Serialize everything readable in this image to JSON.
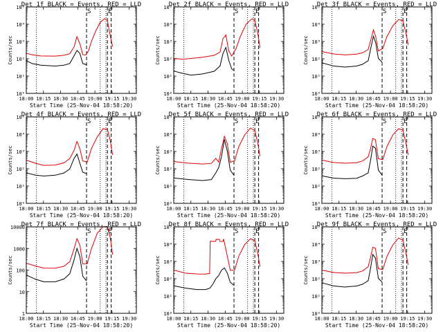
{
  "colors": {
    "background": "#ffffff",
    "events": "#000000",
    "lld": "#e00000"
  },
  "shared": {
    "xticks": [
      "18:00",
      "18:15",
      "18:30",
      "18:45",
      "19:00",
      "19:15",
      "19:30"
    ],
    "xlabel": "Start Time (25-Nov-04 18:58:20)",
    "ylabel": "Counts/sec",
    "marker_S": "S",
    "marker_E": "E"
  },
  "chart_data": [
    {
      "type": "line",
      "title": "Det 1f BLACK = Events, RED = LLD",
      "xlim_min": [
        0,
        38
      ],
      "log_y": true,
      "ylim": [
        1,
        100000
      ],
      "ytick_labels": [
        "10⁰",
        "10¹",
        "10²",
        "10³",
        "10⁴",
        "10⁵"
      ],
      "vlines_dotted_min": [
        3.5,
        25.5,
        27.5
      ],
      "vlines_dashed_min": [
        20.8,
        28.0,
        29.3
      ],
      "series": [
        {
          "color": "black",
          "x": [
            0,
            2,
            5,
            10,
            13,
            15,
            16.5,
            17.5,
            18.5,
            19.5,
            20.5,
            20.8
          ],
          "y": [
            80,
            55,
            45,
            40,
            45,
            55,
            150,
            300,
            200,
            50,
            45,
            40
          ]
        },
        {
          "color": "red",
          "x": [
            0,
            2,
            5,
            10,
            13,
            15,
            16.5,
            17.5,
            18.5,
            19.5,
            20.5,
            21.5,
            22.5,
            24,
            25.5,
            27,
            28,
            29,
            29.8
          ],
          "y": [
            200,
            160,
            140,
            140,
            160,
            200,
            500,
            2000,
            800,
            180,
            170,
            300,
            1000,
            4000,
            12000,
            20000,
            15000,
            2000,
            500
          ]
        }
      ]
    },
    {
      "type": "line",
      "title": "Det 2f BLACK = Events, RED = LLD",
      "xlim_min": [
        0,
        38
      ],
      "log_y": true,
      "ylim": [
        1,
        100000
      ],
      "ytick_labels": [
        "10⁰",
        "10¹",
        "10²",
        "10³",
        "10⁴",
        "10⁵"
      ],
      "vlines_dotted_min": [
        3.5,
        25.5,
        27.5
      ],
      "vlines_dashed_min": [
        20.8,
        28.0,
        29.3
      ],
      "series": [
        {
          "color": "black",
          "x": [
            0,
            3,
            6,
            10,
            14,
            16,
            17,
            18,
            19,
            20,
            20.8
          ],
          "y": [
            20,
            15,
            12,
            14,
            20,
            40,
            200,
            450,
            80,
            25,
            20
          ]
        },
        {
          "color": "red",
          "x": [
            0,
            3,
            6,
            10,
            14,
            16,
            17,
            18,
            19,
            20,
            21.5,
            23,
            25,
            27,
            28,
            29,
            29.8
          ],
          "y": [
            100,
            90,
            100,
            120,
            160,
            250,
            1500,
            2500,
            300,
            150,
            400,
            2000,
            10000,
            20000,
            15000,
            3000,
            400
          ]
        }
      ]
    },
    {
      "type": "line",
      "title": "Det 3f BLACK = Events, RED = LLD",
      "xlim_min": [
        0,
        38
      ],
      "log_y": true,
      "ylim": [
        1,
        100000
      ],
      "ytick_labels": [
        "10⁰",
        "10¹",
        "10²",
        "10³",
        "10⁴",
        "10⁵"
      ],
      "vlines_dotted_min": [
        3.5,
        25.5,
        27.5
      ],
      "vlines_dashed_min": [
        20.8,
        28.0,
        29.3
      ],
      "series": [
        {
          "color": "black",
          "x": [
            0,
            4,
            8,
            12,
            14,
            16,
            17,
            17.8,
            18.6,
            19.5,
            20.8
          ],
          "y": [
            60,
            40,
            35,
            40,
            50,
            80,
            500,
            2000,
            800,
            100,
            60
          ]
        },
        {
          "color": "red",
          "x": [
            0,
            4,
            8,
            12,
            14,
            16,
            17,
            17.8,
            18.6,
            19.5,
            21,
            22.5,
            24.5,
            26.5,
            28,
            29,
            29.8
          ],
          "y": [
            250,
            180,
            160,
            180,
            220,
            350,
            1500,
            5000,
            2000,
            300,
            400,
            2000,
            8000,
            18000,
            15000,
            3000,
            600
          ]
        }
      ]
    },
    {
      "type": "line",
      "title": "Det 4f BLACK = Events, RED = LLD",
      "xlim_min": [
        0,
        38
      ],
      "log_y": true,
      "ylim": [
        1,
        100000
      ],
      "ytick_labels": [
        "10⁰",
        "10¹",
        "10²",
        "10³",
        "10⁴",
        "10⁵"
      ],
      "vlines_dotted_min": [
        3.5,
        25.5,
        27.5
      ],
      "vlines_dashed_min": [
        20.8,
        28.0,
        29.3
      ],
      "series": [
        {
          "color": "black",
          "x": [
            0,
            3,
            6,
            10,
            13,
            15,
            16.5,
            17.5,
            18.5,
            19.5,
            20.8
          ],
          "y": [
            60,
            45,
            40,
            45,
            60,
            100,
            400,
            700,
            200,
            60,
            50
          ]
        },
        {
          "color": "red",
          "x": [
            0,
            3,
            6,
            10,
            13,
            15,
            16.5,
            17.5,
            18.5,
            19.5,
            21,
            22.5,
            24.5,
            26.5,
            28,
            29,
            29.8
          ],
          "y": [
            300,
            200,
            150,
            160,
            220,
            400,
            1200,
            4000,
            1500,
            300,
            250,
            1500,
            7000,
            20000,
            18000,
            4000,
            600
          ]
        }
      ]
    },
    {
      "type": "line",
      "title": "Det 5f BLACK = Events, RED = LLD",
      "xlim_min": [
        0,
        38
      ],
      "log_y": true,
      "ylim": [
        1,
        100000
      ],
      "ytick_labels": [
        "10⁰",
        "10¹",
        "10²",
        "10³",
        "10⁴",
        "10⁵"
      ],
      "vlines_dotted_min": [
        3.5,
        25.5,
        27.5
      ],
      "vlines_dashed_min": [
        20.8,
        28.0,
        29.3
      ],
      "series": [
        {
          "color": "black",
          "x": [
            0,
            5,
            10,
            13,
            14.5,
            15.5,
            16.5,
            17.5,
            18.5,
            19.5,
            20.8
          ],
          "y": [
            30,
            25,
            22,
            25,
            60,
            120,
            500,
            5000,
            1000,
            80,
            40
          ]
        },
        {
          "color": "red",
          "x": [
            0,
            5,
            10,
            13,
            14.5,
            15.5,
            16.5,
            17.5,
            18.5,
            19.5,
            21,
            22.5,
            24.5,
            26.5,
            28,
            29,
            29.8
          ],
          "y": [
            250,
            200,
            180,
            200,
            400,
            250,
            1500,
            8000,
            3000,
            250,
            300,
            2000,
            9000,
            22000,
            15000,
            3000,
            500
          ]
        }
      ]
    },
    {
      "type": "line",
      "title": "Det 6f BLACK = Events, RED = LLD",
      "xlim_min": [
        0,
        38
      ],
      "log_y": true,
      "ylim": [
        1,
        100000
      ],
      "ytick_labels": [
        "10⁰",
        "10¹",
        "10²",
        "10³",
        "10⁴",
        "10⁵"
      ],
      "vlines_dotted_min": [
        3.5,
        25.5,
        27.5
      ],
      "vlines_dashed_min": [
        20.8,
        28.0,
        29.3
      ],
      "series": [
        {
          "color": "black",
          "x": [
            0,
            4,
            8,
            12,
            14,
            16,
            16.8,
            17.6,
            18.5,
            19.5,
            20.8
          ],
          "y": [
            40,
            30,
            28,
            30,
            40,
            60,
            300,
            2000,
            1500,
            80,
            40
          ]
        },
        {
          "color": "red",
          "x": [
            0,
            4,
            8,
            12,
            14,
            16,
            16.8,
            17.6,
            18.5,
            19.5,
            21,
            22.5,
            24.5,
            26.5,
            28,
            29,
            29.8
          ],
          "y": [
            300,
            220,
            200,
            220,
            280,
            500,
            1500,
            6000,
            5000,
            400,
            350,
            2000,
            9000,
            20000,
            16000,
            3000,
            600
          ]
        }
      ]
    },
    {
      "type": "line",
      "title": "Det 7f BLACK = Events, RED = LLD",
      "xlim_min": [
        0,
        38
      ],
      "log_y": true,
      "ylim": [
        1,
        10000
      ],
      "ytick_labels": [
        "1",
        "10",
        "100",
        "1000",
        "10000"
      ],
      "vlines_dotted_min": [
        3.5,
        25.5,
        27.5
      ],
      "vlines_dashed_min": [
        20.8,
        28.0,
        29.3
      ],
      "series": [
        {
          "color": "black",
          "x": [
            0,
            3,
            6,
            10,
            13,
            15,
            16.5,
            17.5,
            18.5,
            19.5,
            20.8
          ],
          "y": [
            60,
            40,
            30,
            30,
            40,
            70,
            300,
            1000,
            400,
            50,
            30
          ]
        },
        {
          "color": "red",
          "x": [
            0,
            3,
            6,
            10,
            13,
            15,
            16.5,
            17.5,
            18.5,
            19.5,
            21,
            22.5,
            24.5,
            26.5,
            28,
            29,
            29.8
          ],
          "y": [
            200,
            150,
            120,
            120,
            150,
            250,
            1000,
            3000,
            1500,
            200,
            200,
            1000,
            5000,
            10000,
            10000,
            3000,
            500
          ]
        }
      ]
    },
    {
      "type": "line",
      "title": "Det 8f BLACK = Events, RED = LLD",
      "xlim_min": [
        0,
        38
      ],
      "log_y": true,
      "ylim": [
        1,
        100000
      ],
      "ytick_labels": [
        "10⁰",
        "10¹",
        "10²",
        "10³",
        "10⁴",
        "10⁵"
      ],
      "vlines_dotted_min": [
        3.5,
        25.5,
        27.5
      ],
      "vlines_dashed_min": [
        20.8,
        28.0,
        29.3
      ],
      "series": [
        {
          "color": "black",
          "x": [
            0,
            4,
            8,
            11,
            12.5,
            13.5,
            14.5,
            15.5,
            16.5,
            17.5,
            18.5,
            19.5,
            20.8
          ],
          "y": [
            40,
            30,
            25,
            25,
            30,
            50,
            100,
            150,
            300,
            400,
            200,
            60,
            40
          ]
        },
        {
          "color": "red",
          "x": [
            0,
            4,
            8,
            11,
            12.4,
            12.6,
            14.5,
            14.6,
            15.8,
            16.0,
            17.0,
            17.2,
            18.5,
            19.5,
            21,
            22.5,
            24.5,
            26.5,
            28,
            29,
            29.8
          ],
          "y": [
            300,
            200,
            180,
            180,
            200,
            15000,
            15000,
            20000,
            20000,
            15000,
            15000,
            20000,
            2000,
            300,
            300,
            2000,
            9000,
            20000,
            15000,
            3000,
            500
          ]
        }
      ]
    },
    {
      "type": "line",
      "title": "Det 9f BLACK = Events, RED = LLD",
      "xlim_min": [
        0,
        38
      ],
      "log_y": true,
      "ylim": [
        1,
        100000
      ],
      "ytick_labels": [
        "10⁰",
        "10¹",
        "10²",
        "10³",
        "10⁴",
        "10⁵"
      ],
      "vlines_dotted_min": [
        3.5,
        25.5,
        27.5
      ],
      "vlines_dashed_min": [
        20.8,
        28.0,
        29.3
      ],
      "series": [
        {
          "color": "black",
          "x": [
            0,
            4,
            8,
            12,
            14,
            16,
            16.8,
            17.6,
            18.5,
            19.5,
            20.8
          ],
          "y": [
            60,
            40,
            35,
            40,
            50,
            80,
            400,
            2500,
            1500,
            100,
            60
          ]
        },
        {
          "color": "red",
          "x": [
            0,
            4,
            8,
            12,
            14,
            16,
            16.8,
            17.6,
            18.5,
            19.5,
            21,
            22.5,
            24.5,
            26.5,
            28,
            29,
            29.8
          ],
          "y": [
            300,
            220,
            200,
            220,
            280,
            500,
            1800,
            7000,
            6000,
            400,
            350,
            2000,
            9000,
            22000,
            16000,
            3000,
            600
          ]
        }
      ]
    }
  ]
}
